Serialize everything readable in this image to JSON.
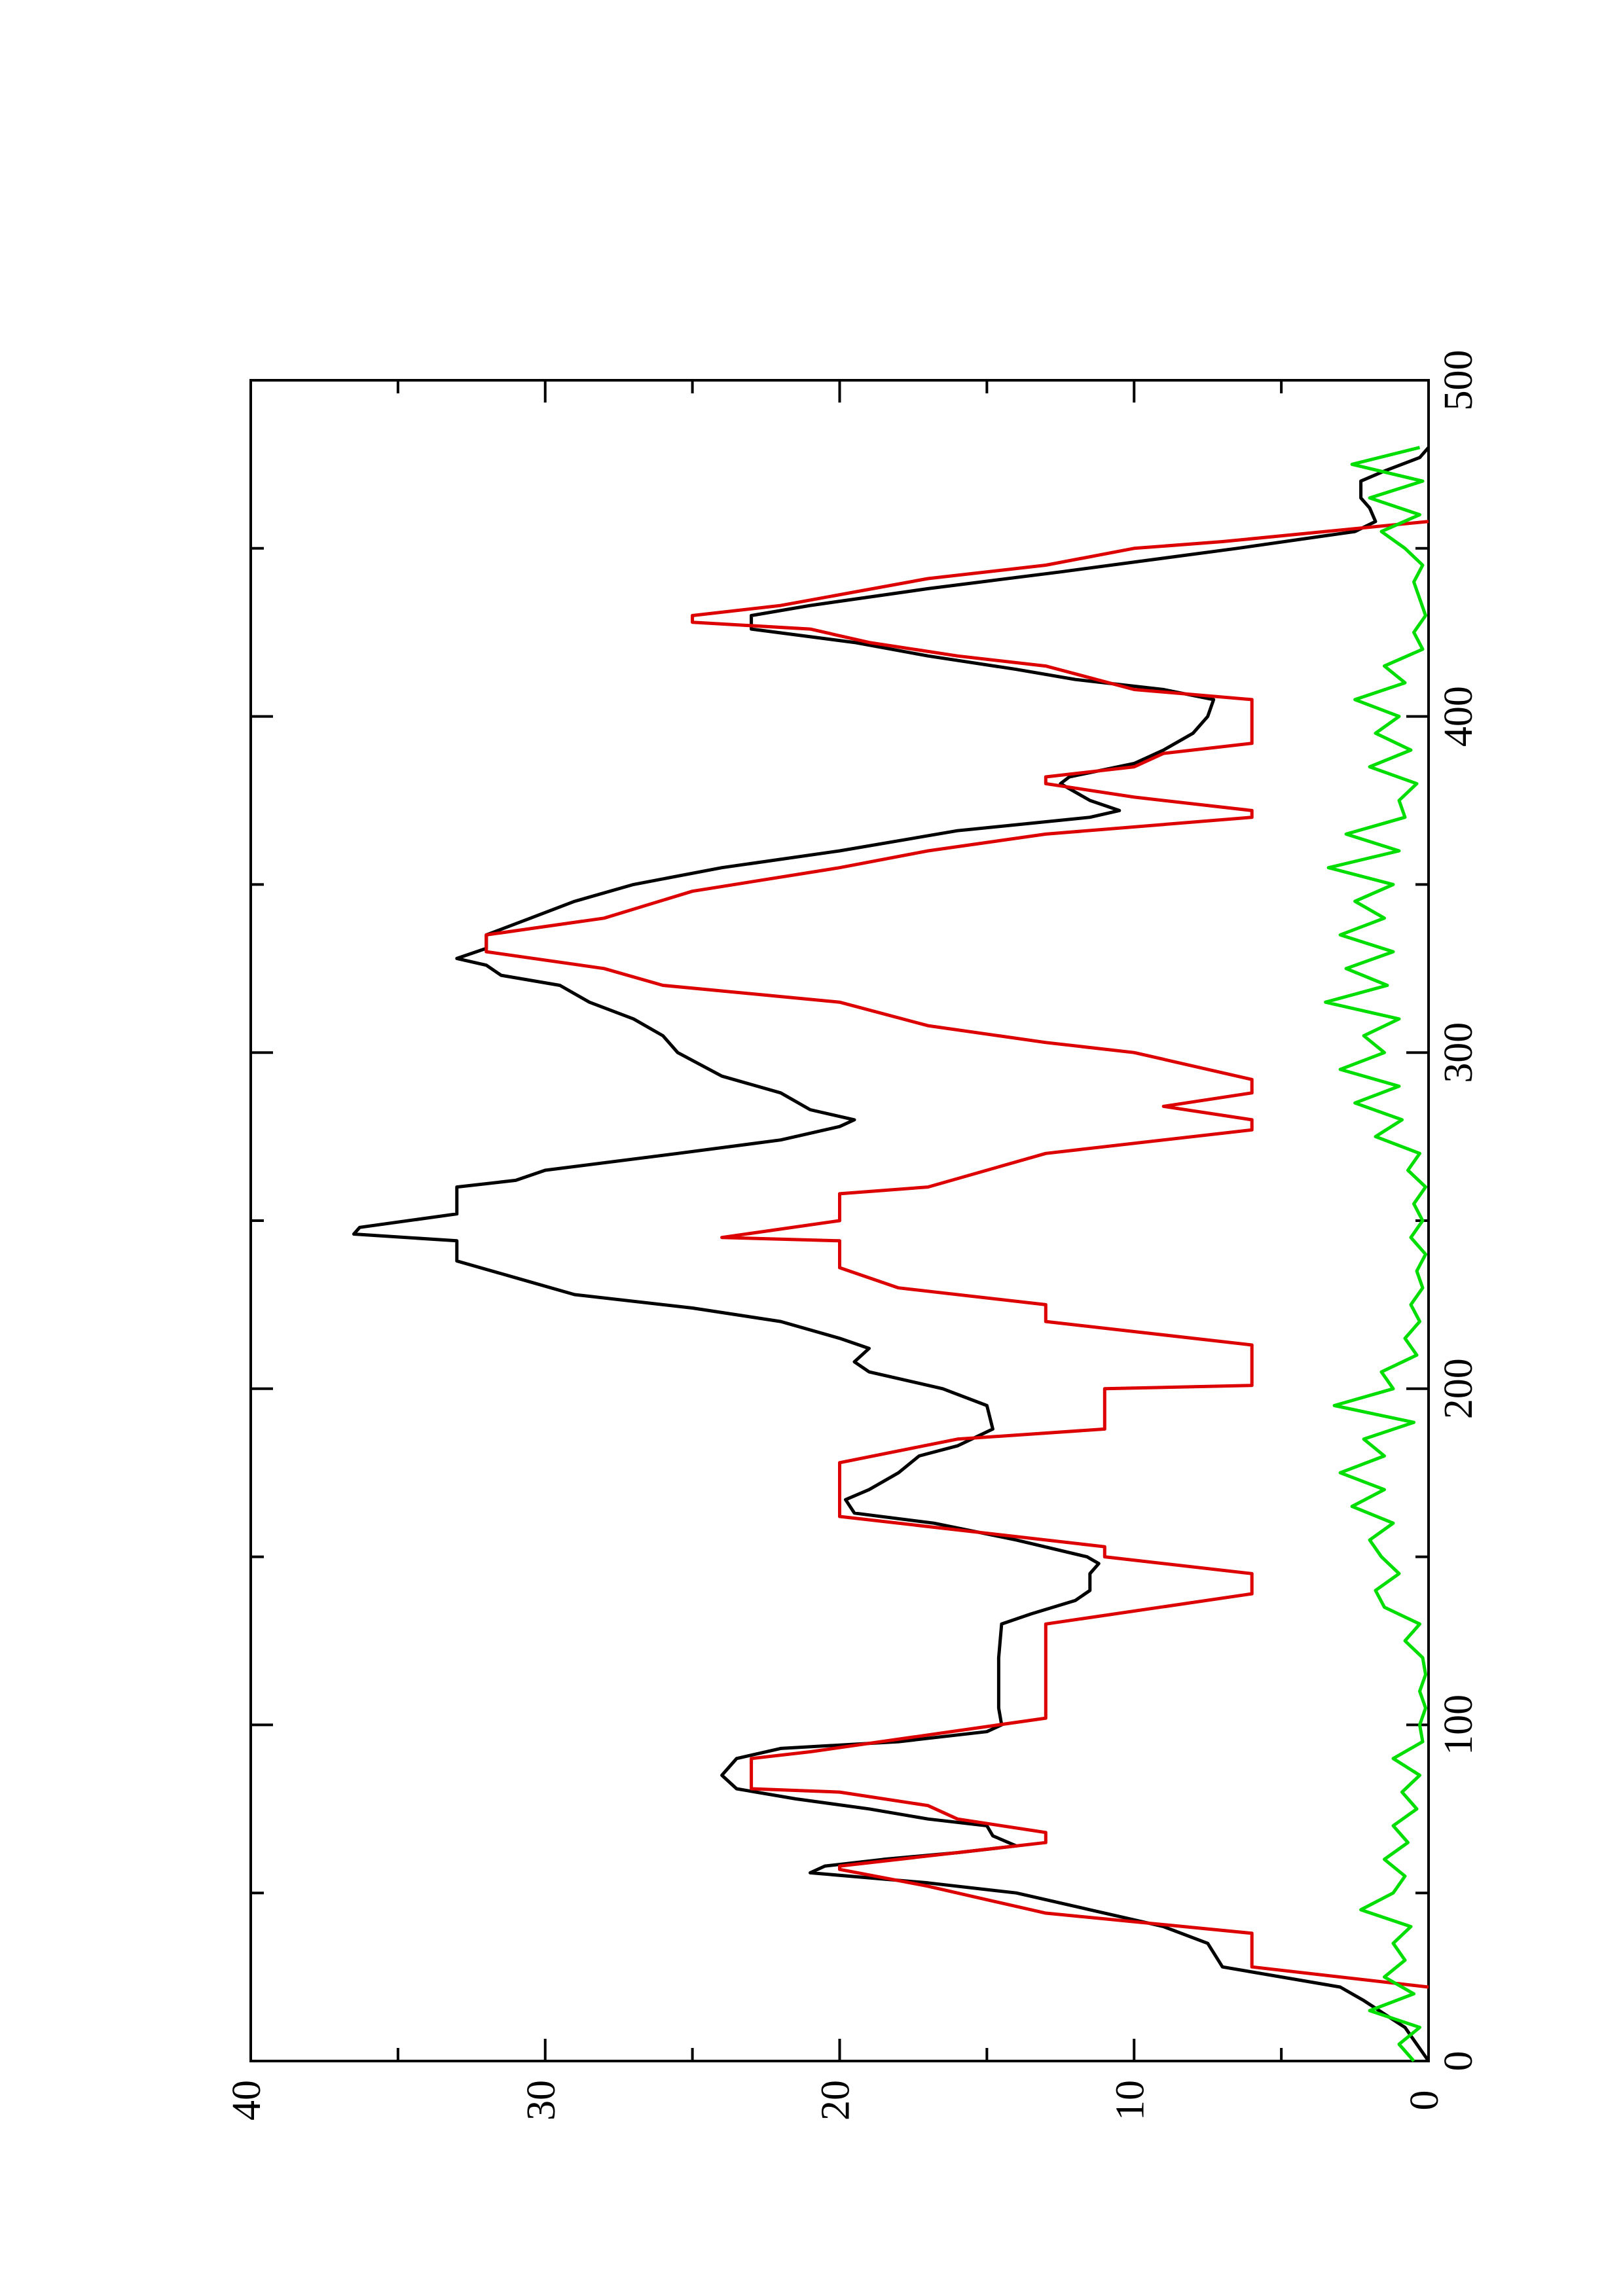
{
  "chart_data": {
    "type": "line",
    "orientation": "rotated-ccw",
    "grid": false,
    "xlim": [
      0,
      500
    ],
    "xticks": [
      0,
      100,
      200,
      300,
      400,
      500
    ],
    "xminorticks": [
      50,
      150,
      250,
      350,
      450
    ],
    "ylim": [
      0,
      40
    ],
    "yticks": [
      0,
      10,
      20,
      30,
      40
    ],
    "yminorticks": [
      5,
      15,
      25,
      35
    ],
    "series": [
      {
        "color": "#000000",
        "x": [
          0,
          10,
          18,
          22,
          28,
          35,
          40,
          45,
          50,
          53,
          56,
          58,
          60,
          62,
          64,
          67,
          70,
          72,
          75,
          78,
          81,
          85,
          90,
          93,
          95,
          98,
          100,
          105,
          120,
          130,
          133,
          137,
          140,
          145,
          148,
          150,
          155,
          160,
          163,
          167,
          170,
          175,
          180,
          183,
          188,
          195,
          200,
          205,
          208,
          212,
          215,
          220,
          224,
          228,
          233,
          238,
          244,
          246,
          248,
          252,
          260,
          262,
          265,
          270,
          274,
          278,
          280,
          283,
          288,
          293,
          300,
          305,
          310,
          315,
          320,
          323,
          326,
          328,
          331,
          335,
          340,
          345,
          350,
          355,
          360,
          366,
          370,
          372,
          375,
          380,
          382,
          386,
          390,
          395,
          400,
          405,
          408,
          411,
          414,
          418,
          422,
          426,
          430,
          433,
          438,
          443,
          450,
          455,
          458,
          462,
          465,
          470,
          473,
          477,
          480
        ],
        "values": [
          0,
          0.8,
          2.2,
          3,
          7,
          7.5,
          9,
          11.5,
          14,
          17,
          21,
          20.5,
          18.5,
          16,
          14,
          14.8,
          15,
          17,
          19,
          21.5,
          23.5,
          24,
          23.5,
          22,
          18,
          15,
          14.5,
          14.6,
          14.6,
          14.5,
          13.5,
          12,
          11.5,
          11.5,
          11.2,
          11.6,
          14,
          16.8,
          19.5,
          19.8,
          19,
          18,
          17.3,
          16,
          14.8,
          15,
          16.5,
          19,
          19.5,
          19,
          20,
          22,
          25,
          29,
          31,
          33,
          33,
          36.5,
          36.3,
          33,
          33,
          31,
          30,
          25.5,
          22,
          20,
          19.5,
          21,
          22,
          24,
          25.5,
          26,
          27,
          28.5,
          29.5,
          31.5,
          32,
          33,
          32,
          32,
          30.5,
          29,
          27,
          24,
          20,
          16,
          11.5,
          10.5,
          11.5,
          12.5,
          12.2,
          10,
          9,
          8,
          7.5,
          7.3,
          9,
          12,
          14,
          17,
          19.5,
          23,
          23,
          21,
          17,
          12.5,
          6.5,
          2.5,
          1.8,
          2,
          2.3,
          2.3,
          1.5,
          0.3,
          0
        ]
      },
      {
        "color": "#dd0000",
        "x": [
          22,
          28,
          38,
          44,
          48,
          52,
          57,
          58,
          65,
          68,
          72,
          76,
          80,
          81,
          90,
          92,
          102,
          130,
          139,
          145,
          150,
          153,
          158,
          162,
          178,
          185,
          188,
          200,
          201,
          213,
          220,
          225,
          230,
          236,
          244,
          245,
          250,
          258,
          260,
          270,
          277,
          280,
          284,
          288,
          292,
          300,
          303,
          308,
          315,
          320,
          325,
          330,
          335,
          340,
          348,
          355,
          360,
          365,
          370,
          372,
          376,
          380,
          382,
          385,
          389,
          392,
          405,
          408,
          415,
          418,
          422,
          426,
          428,
          430,
          433,
          441,
          445,
          450,
          452,
          458
        ],
        "values": [
          0,
          6,
          6,
          13,
          15,
          17,
          20,
          20,
          13,
          13,
          16,
          17,
          20,
          23,
          23,
          21,
          13,
          13,
          6,
          6,
          11,
          11,
          16,
          20,
          20,
          16,
          11,
          11,
          6,
          6,
          13,
          13,
          18,
          20,
          20,
          24,
          20,
          20,
          17,
          13,
          6,
          6,
          9,
          6,
          6,
          10,
          13,
          17,
          20,
          26,
          28,
          32,
          32,
          28,
          25,
          20,
          17,
          13,
          6,
          6,
          10,
          13,
          13,
          10,
          9,
          6,
          6,
          10,
          13,
          16,
          19,
          21,
          25,
          25,
          22,
          17,
          13,
          10,
          7,
          0
        ]
      },
      {
        "color": "#00dd00",
        "x": [
          0,
          5,
          10,
          15,
          20,
          25,
          30,
          35,
          40,
          45,
          50,
          55,
          60,
          65,
          70,
          75,
          80,
          85,
          90,
          95,
          100,
          105,
          110,
          115,
          120,
          125,
          130,
          135,
          140,
          145,
          150,
          155,
          160,
          165,
          170,
          175,
          180,
          185,
          190,
          195,
          200,
          205,
          210,
          215,
          220,
          225,
          230,
          235,
          240,
          245,
          250,
          255,
          260,
          265,
          270,
          275,
          280,
          285,
          290,
          295,
          300,
          305,
          310,
          315,
          320,
          325,
          330,
          335,
          340,
          345,
          350,
          355,
          360,
          365,
          370,
          375,
          380,
          385,
          390,
          395,
          400,
          405,
          410,
          415,
          420,
          425,
          430,
          435,
          440,
          445,
          450,
          455,
          460,
          465,
          470,
          475,
          480
        ],
        "values": [
          0.5,
          1,
          0.3,
          2,
          0.5,
          1.5,
          0.8,
          1.2,
          0.6,
          2.3,
          1.2,
          0.8,
          1.5,
          0.7,
          1.2,
          0.4,
          0.9,
          0.3,
          1.2,
          0.2,
          0.3,
          0.1,
          0.3,
          0.1,
          0.2,
          0.8,
          0.3,
          1.5,
          1.8,
          1,
          1.6,
          2,
          1.2,
          2.6,
          1.5,
          3,
          1.5,
          2.2,
          0.5,
          3.2,
          1.2,
          1.6,
          0.4,
          0.8,
          0.3,
          0.6,
          0.2,
          0.4,
          0.1,
          0.6,
          0.2,
          0.5,
          0.1,
          0.7,
          0.3,
          1.8,
          0.9,
          2.5,
          1,
          3,
          1.5,
          2.2,
          1,
          3.5,
          1.4,
          2.8,
          1.2,
          3,
          1.5,
          2.5,
          1.2,
          3.4,
          1,
          2.8,
          0.8,
          1,
          0.4,
          2,
          0.6,
          1.8,
          1,
          2.5,
          0.8,
          1.5,
          0.2,
          0.5,
          0.1,
          0.3,
          0.5,
          0.2,
          0.8,
          1.6,
          0.3,
          2,
          0.2,
          2.6,
          0.3
        ]
      }
    ]
  }
}
